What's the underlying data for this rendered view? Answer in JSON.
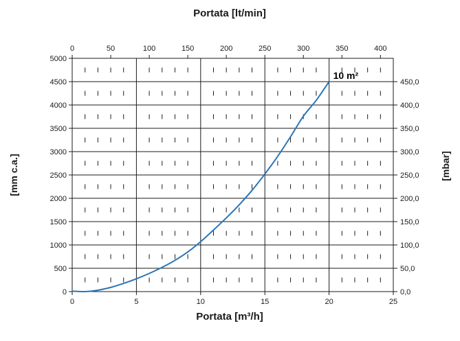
{
  "chart_data": {
    "type": "line",
    "title_top": "Portata [lt/min]",
    "xlabel": "Portata [m³/h]",
    "ylabel_left": "[mm c.a.]",
    "ylabel_right": "[mbar]",
    "x_bottom": {
      "lim": [
        0,
        25
      ],
      "ticks": [
        "0",
        "5",
        "10",
        "15",
        "20",
        "25"
      ]
    },
    "x_top": {
      "lim": [
        0,
        416.67
      ],
      "ticks": [
        "0",
        "50",
        "100",
        "150",
        "200",
        "250",
        "300",
        "350",
        "400"
      ]
    },
    "y_left": {
      "lim": [
        0,
        5000
      ],
      "ticks": [
        "0",
        "500",
        "1000",
        "1500",
        "2000",
        "2500",
        "3000",
        "3500",
        "4000",
        "4500",
        "5000"
      ]
    },
    "y_right": {
      "lim": [
        0,
        500
      ],
      "ticks": [
        "0,0",
        "50,0",
        "100,0",
        "150,0",
        "200,0",
        "250,0",
        "300,0",
        "350,0",
        "400,0",
        "450,0"
      ]
    },
    "grid": true,
    "series": [
      {
        "name": "10 m²",
        "color": "#2a74b6",
        "x": [
          0,
          1,
          2,
          3,
          4,
          5,
          6,
          7,
          8,
          9,
          10,
          11,
          12,
          13,
          14,
          15,
          16,
          17,
          18,
          19,
          20
        ],
        "y": [
          10,
          0,
          30,
          90,
          175,
          275,
          390,
          520,
          670,
          850,
          1070,
          1320,
          1580,
          1860,
          2170,
          2520,
          2900,
          3320,
          3760,
          4100,
          4500
        ]
      }
    ]
  }
}
